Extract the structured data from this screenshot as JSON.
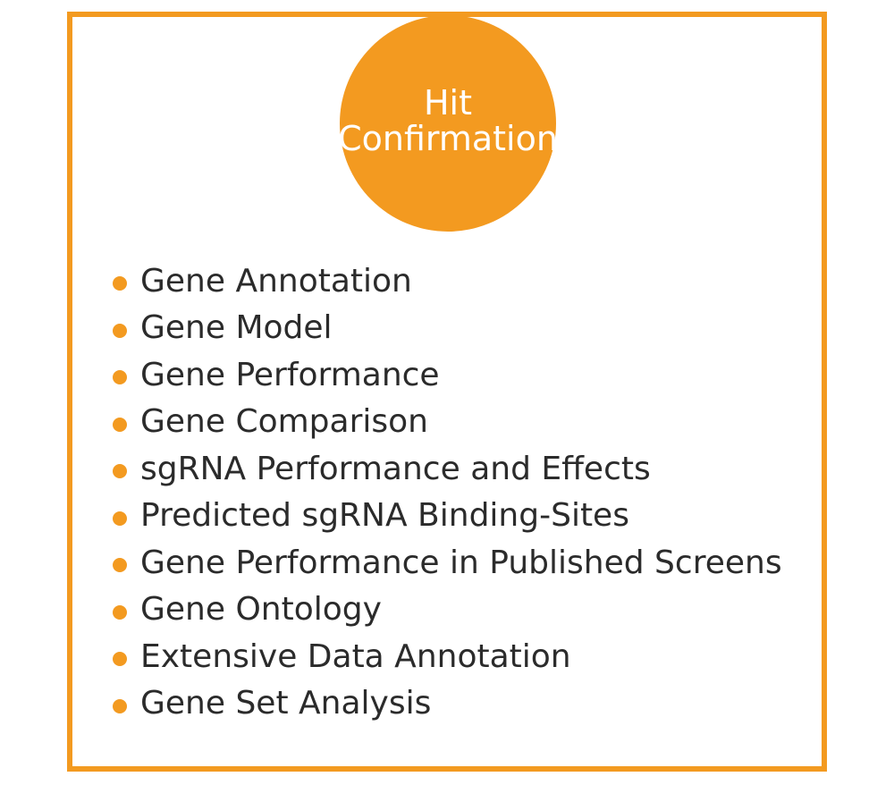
{
  "accent_color": "#F39A20",
  "header": {
    "title_line1": "Hit",
    "title_line2": "Confirmation"
  },
  "features": [
    "Gene Annotation",
    "Gene Model",
    "Gene Performance",
    "Gene Comparison",
    "sgRNA Performance and Effects",
    "Predicted sgRNA Binding-Sites",
    "Gene Performance in Published Screens",
    "Gene Ontology",
    "Extensive Data Annotation",
    "Gene Set Analysis"
  ]
}
